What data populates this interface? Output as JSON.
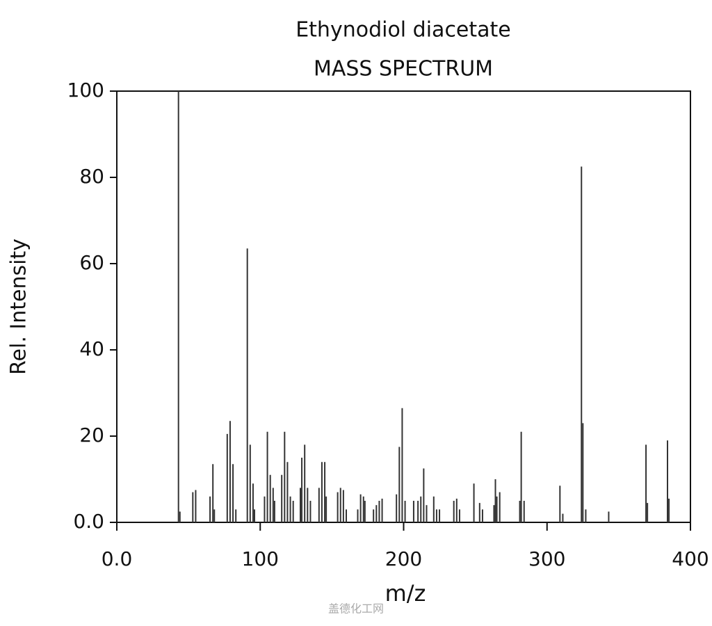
{
  "chart_data": {
    "type": "stem",
    "title": "Ethynodiol diacetate",
    "subtitle": "MASS SPECTRUM",
    "x_label": "m/z",
    "y_label": "Rel. Intensity",
    "color": "#333333",
    "x": [
      43,
      44,
      53,
      55,
      65,
      67,
      68,
      77,
      79,
      81,
      83,
      91,
      93,
      95,
      96,
      103,
      105,
      107,
      109,
      110,
      115,
      117,
      119,
      121,
      123,
      128,
      129,
      131,
      133,
      135,
      141,
      143,
      145,
      146,
      154,
      156,
      158,
      160,
      168,
      170,
      172,
      173,
      179,
      181,
      183,
      185,
      195,
      197,
      199,
      201,
      207,
      210,
      212,
      214,
      216,
      221,
      223,
      225,
      235,
      237,
      239,
      249,
      253,
      255,
      263,
      264,
      265,
      267,
      281,
      282,
      284,
      309,
      311,
      324,
      325,
      327,
      343,
      369,
      370,
      384,
      385
    ],
    "values": [
      100,
      2.5,
      7,
      7.5,
      6,
      13.5,
      3,
      20.5,
      23.5,
      13.5,
      3,
      63.5,
      18,
      9,
      3,
      6,
      21,
      11,
      8,
      5,
      11,
      21,
      14,
      6,
      5,
      8,
      15,
      18,
      8,
      5,
      8,
      14,
      14,
      6,
      7,
      8,
      7.5,
      3,
      3,
      6.5,
      6,
      5,
      3,
      4,
      5,
      5.5,
      6.5,
      17.5,
      26.5,
      5,
      5,
      5,
      6,
      12.5,
      4,
      6,
      3,
      3,
      5,
      5.5,
      3,
      9,
      4.5,
      3,
      4,
      10,
      6,
      7,
      5,
      21,
      5,
      8.5,
      2,
      82.5,
      23,
      3,
      2.5,
      18,
      4.5,
      19,
      5.5
    ],
    "xlim": [
      0,
      400
    ],
    "ylim": [
      0,
      100
    ],
    "xticks": [
      {
        "value": 0,
        "label": "0.0"
      },
      100,
      200,
      300,
      400
    ],
    "yticks": [
      {
        "value": 0,
        "label": "0.0"
      },
      20,
      40,
      60,
      80,
      100
    ]
  },
  "watermark": "盖德化工网"
}
